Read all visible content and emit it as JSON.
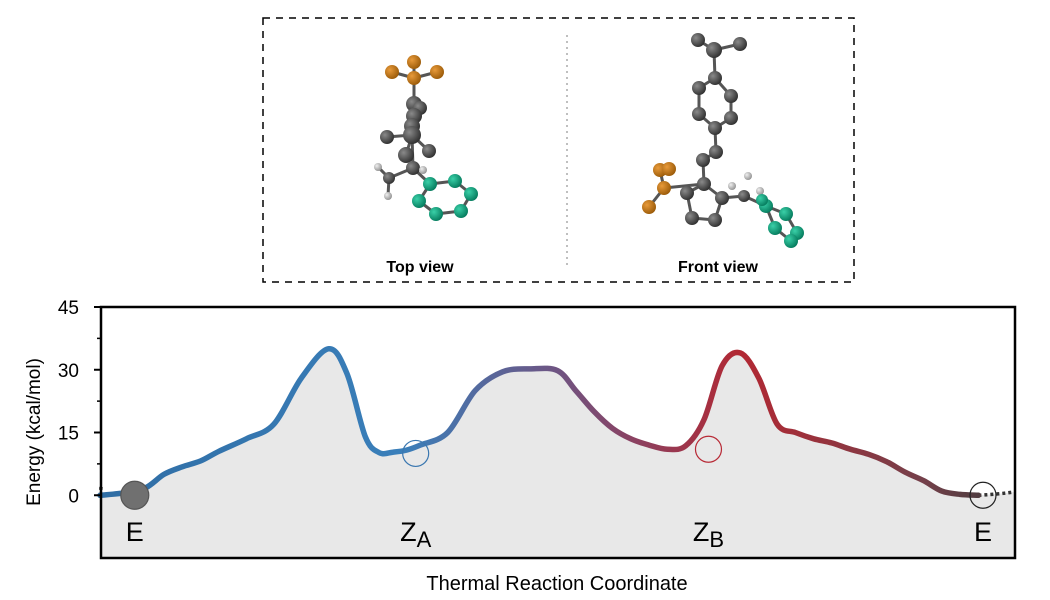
{
  "inset": {
    "left_caption": "Top view",
    "right_caption": "Front view"
  },
  "chart_data": {
    "type": "line",
    "xlabel": "Thermal Reaction Coordinate",
    "ylabel": "Energy (kcal/mol)",
    "ylim": [
      -15,
      45
    ],
    "yticks": [
      0,
      15,
      30,
      45
    ],
    "grid": false,
    "x_range": [
      0,
      100
    ],
    "series": [
      {
        "x": [
          0,
          2.8,
          5,
          7,
          9,
          11,
          13,
          16,
          19,
          22,
          25,
          27,
          29,
          30.5,
          32,
          33.5,
          35,
          38,
          41,
          44,
          47,
          50,
          52,
          54,
          56,
          58,
          60,
          62,
          64,
          66,
          68,
          70,
          72,
          74,
          76,
          78,
          80,
          82,
          84,
          86,
          88,
          90,
          92,
          94,
          96
        ],
        "y": [
          0,
          0.6,
          1.8,
          5,
          6.8,
          8.2,
          10.5,
          13.5,
          17,
          28,
          35,
          29,
          14,
          10.2,
          10.3,
          10.8,
          12,
          15,
          25,
          29.5,
          30.2,
          29.8,
          25,
          20,
          16,
          13.5,
          12,
          11,
          11.8,
          18,
          31,
          34,
          28,
          17,
          15,
          13.5,
          12.5,
          11,
          9.8,
          8,
          5.5,
          3.5,
          1,
          0.2,
          0
        ],
        "color_start": "#3a77b0",
        "color_mid": "#6b4e80",
        "color_end": "#b82a36"
      }
    ],
    "points": [
      {
        "label": "E",
        "x": 3.8,
        "y": 0
      },
      {
        "label": "Z",
        "sub": "A",
        "x": 34.5,
        "y": 10
      },
      {
        "label": "Z",
        "sub": "B",
        "x": 66.5,
        "y": 11
      },
      {
        "label": "E",
        "sub": "",
        "x": 96.5,
        "y": 0
      }
    ],
    "colors": {
      "fill": "#e8e8e8",
      "left_curve": "#3a77b0",
      "right_curve": "#b82a36",
      "marker_E": "#707070"
    }
  }
}
